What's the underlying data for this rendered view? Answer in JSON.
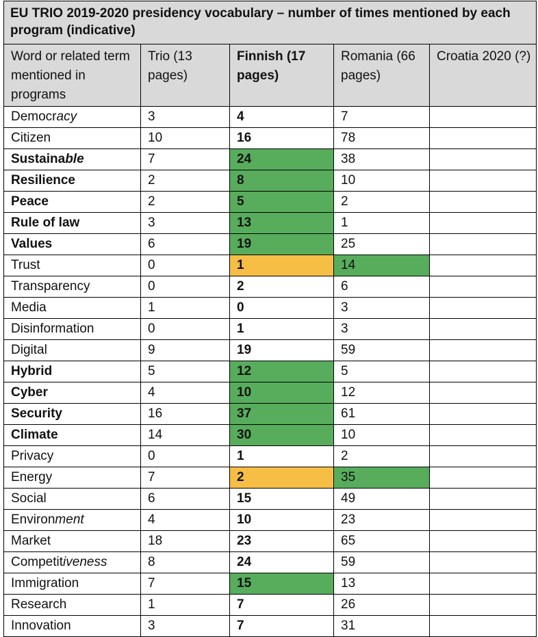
{
  "caption": "EU TRIO 2019-2020 presidency vocabulary – number of times mentioned by each program (indicative)",
  "headers": [
    {
      "text": "Word or related term mentioned in programs",
      "bold": false
    },
    {
      "text": "Trio (13 pages)",
      "bold": false
    },
    {
      "text": "Finnish (17 pages)",
      "bold": true
    },
    {
      "text": "Romania (66 pages)",
      "bold": false
    },
    {
      "text": "Croatia 2020 (?)",
      "bold": false
    }
  ],
  "rows": [
    {
      "term": [
        "Democr",
        "acy"
      ],
      "style": "italic-suffix",
      "trio": "3",
      "finnish": "4",
      "romania": "7",
      "croatia": "",
      "fin_hl": "",
      "rom_hl": ""
    },
    {
      "term": [
        "Citizen",
        ""
      ],
      "style": "plain",
      "trio": "10",
      "finnish": "16",
      "romania": "78",
      "croatia": "",
      "fin_hl": "",
      "rom_hl": ""
    },
    {
      "term": [
        "Sustaina",
        "ble"
      ],
      "style": "bold-italic-suffix",
      "trio": "7",
      "finnish": "24",
      "romania": "38",
      "croatia": "",
      "fin_hl": "green",
      "rom_hl": ""
    },
    {
      "term": [
        "Resilience",
        ""
      ],
      "style": "bold",
      "trio": "2",
      "finnish": "8",
      "romania": "10",
      "croatia": "",
      "fin_hl": "green",
      "rom_hl": ""
    },
    {
      "term": [
        "Peace",
        ""
      ],
      "style": "bold",
      "trio": "2",
      "finnish": "5",
      "romania": "2",
      "croatia": "",
      "fin_hl": "green",
      "rom_hl": ""
    },
    {
      "term": [
        "Rule of law",
        ""
      ],
      "style": "bold",
      "trio": "3",
      "finnish": "13",
      "romania": "1",
      "croatia": "",
      "fin_hl": "green",
      "rom_hl": ""
    },
    {
      "term": [
        "Values",
        ""
      ],
      "style": "bold",
      "trio": "6",
      "finnish": "19",
      "romania": "25",
      "croatia": "",
      "fin_hl": "green",
      "rom_hl": ""
    },
    {
      "term": [
        "Trust",
        ""
      ],
      "style": "plain",
      "trio": "0",
      "finnish": "1",
      "romania": "14",
      "croatia": "",
      "fin_hl": "amber",
      "rom_hl": "green"
    },
    {
      "term": [
        "Transparency",
        ""
      ],
      "style": "plain",
      "trio": "0",
      "finnish": "2",
      "romania": "6",
      "croatia": "",
      "fin_hl": "",
      "rom_hl": ""
    },
    {
      "term": [
        "Media",
        ""
      ],
      "style": "plain",
      "trio": "1",
      "finnish": "0",
      "romania": "3",
      "croatia": "",
      "fin_hl": "",
      "rom_hl": ""
    },
    {
      "term": [
        "Disinformation",
        ""
      ],
      "style": "plain",
      "trio": "0",
      "finnish": "1",
      "romania": "3",
      "croatia": "",
      "fin_hl": "",
      "rom_hl": ""
    },
    {
      "term": [
        "Digital",
        ""
      ],
      "style": "plain",
      "trio": "9",
      "finnish": "19",
      "romania": "59",
      "croatia": "",
      "fin_hl": "",
      "rom_hl": ""
    },
    {
      "term": [
        "Hybrid",
        ""
      ],
      "style": "bold",
      "trio": "5",
      "finnish": "12",
      "romania": "5",
      "croatia": "",
      "fin_hl": "green",
      "rom_hl": ""
    },
    {
      "term": [
        "Cyber",
        ""
      ],
      "style": "bold",
      "trio": "4",
      "finnish": "10",
      "romania": "12",
      "croatia": "",
      "fin_hl": "green",
      "rom_hl": ""
    },
    {
      "term": [
        "Security",
        ""
      ],
      "style": "bold",
      "trio": "16",
      "finnish": "37",
      "romania": "61",
      "croatia": "",
      "fin_hl": "green",
      "rom_hl": ""
    },
    {
      "term": [
        "Climate",
        ""
      ],
      "style": "bold",
      "trio": "14",
      "finnish": "30",
      "romania": "10",
      "croatia": "",
      "fin_hl": "green",
      "rom_hl": ""
    },
    {
      "term": [
        "Privacy",
        ""
      ],
      "style": "plain",
      "trio": "0",
      "finnish": "1",
      "romania": "2",
      "croatia": "",
      "fin_hl": "",
      "rom_hl": ""
    },
    {
      "term": [
        "Energy",
        ""
      ],
      "style": "plain",
      "trio": "7",
      "finnish": "2",
      "romania": "35",
      "croatia": "",
      "fin_hl": "amber",
      "rom_hl": "green"
    },
    {
      "term": [
        "Social",
        ""
      ],
      "style": "plain",
      "trio": "6",
      "finnish": "15",
      "romania": "49",
      "croatia": "",
      "fin_hl": "",
      "rom_hl": ""
    },
    {
      "term": [
        "Environ",
        "ment"
      ],
      "style": "italic-suffix",
      "trio": "4",
      "finnish": "10",
      "romania": "23",
      "croatia": "",
      "fin_hl": "",
      "rom_hl": ""
    },
    {
      "term": [
        "Market",
        ""
      ],
      "style": "plain",
      "trio": "18",
      "finnish": "23",
      "romania": "65",
      "croatia": "",
      "fin_hl": "",
      "rom_hl": ""
    },
    {
      "term": [
        "Competit",
        "iveness"
      ],
      "style": "italic-suffix",
      "trio": "8",
      "finnish": "24",
      "romania": "59",
      "croatia": "",
      "fin_hl": "",
      "rom_hl": ""
    },
    {
      "term": [
        "Immigration",
        ""
      ],
      "style": "plain",
      "trio": "7",
      "finnish": "15",
      "romania": "13",
      "croatia": "",
      "fin_hl": "green",
      "rom_hl": ""
    },
    {
      "term": [
        "Research",
        ""
      ],
      "style": "plain",
      "trio": "1",
      "finnish": "7",
      "romania": "26",
      "croatia": "",
      "fin_hl": "",
      "rom_hl": ""
    },
    {
      "term": [
        "Innovation",
        ""
      ],
      "style": "plain",
      "trio": "3",
      "finnish": "7",
      "romania": "31",
      "croatia": "",
      "fin_hl": "",
      "rom_hl": ""
    }
  ],
  "colors": {
    "header_bg": "#d9d9d9",
    "green": "#57ad5c",
    "amber": "#f6be45"
  }
}
